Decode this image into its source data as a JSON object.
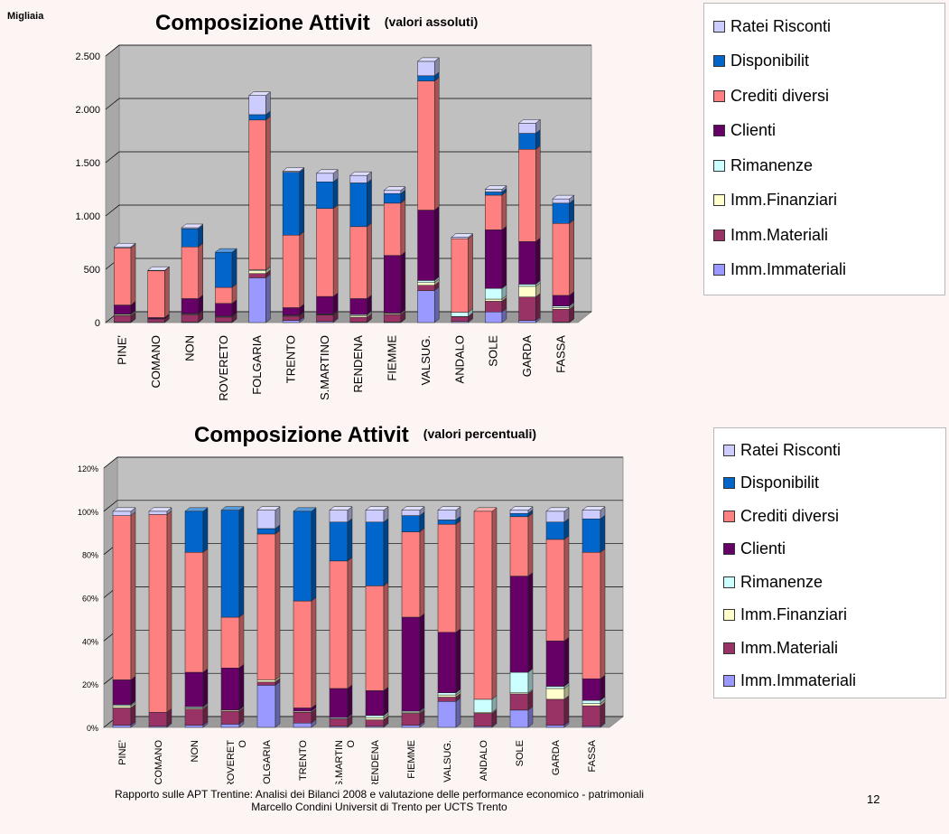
{
  "unit_label": "Migliaia",
  "footer": {
    "line1": "Rapporto sulle APT Trentine: Analisi dei Bilanci 2008 e valutazione delle performance economico - patrimoniali",
    "line2": "Marcello Condini Universit  di Trento  per UCTS Trento"
  },
  "page_number": "12",
  "colors": {
    "Imm.Immateriali": "#9999ff",
    "Imm.Materiali": "#993366",
    "Imm.Finanziari": "#ffffcc",
    "Rimanenze": "#ccffff",
    "Clienti": "#660066",
    "Crediti diversi": "#ff8080",
    "Disponibilit": "#0066cc",
    "Ratei Risconti": "#ccccff"
  },
  "legend_items": [
    "Ratei Risconti",
    "Disponibilit",
    "Crediti diversi",
    "Clienti",
    "Rimanenze",
    "Imm.Finanziari",
    "Imm.Materiali",
    "Imm.Immateriali"
  ],
  "chart_data": [
    {
      "type": "bar",
      "stacked": true,
      "title": "Composizione Attivit",
      "subtitle": "(valori assoluti)",
      "ylim": [
        0,
        2500
      ],
      "yticks": [
        0,
        500,
        1000,
        1500,
        2000,
        2500
      ],
      "ytick_labels": [
        "0",
        "500",
        "1.000",
        "1.500",
        "2.000",
        "2.500"
      ],
      "legend_position": "right",
      "grid": true,
      "categories": [
        "PINE'",
        "COMANO",
        "NON",
        "ROVERETO",
        "FOLGARIA",
        "TRENTO",
        "S.MARTINO",
        "RENDENA",
        "FIEMME",
        "VALSUG.",
        "ANDALO",
        "SOLE",
        "GARDA",
        "FASSA"
      ],
      "series": [
        {
          "name": "Imm.Immateriali",
          "values": [
            5,
            3,
            5,
            5,
            420,
            20,
            10,
            5,
            5,
            300,
            10,
            100,
            20,
            5
          ]
        },
        {
          "name": "Imm.Materiali",
          "values": [
            60,
            30,
            70,
            45,
            40,
            40,
            60,
            45,
            70,
            50,
            45,
            100,
            220,
            120
          ]
        },
        {
          "name": "Imm.Finanziari",
          "values": [
            10,
            2,
            5,
            5,
            25,
            5,
            5,
            15,
            10,
            25,
            2,
            20,
            100,
            15
          ]
        },
        {
          "name": "Rimanenze",
          "values": [
            5,
            2,
            5,
            5,
            10,
            5,
            5,
            10,
            5,
            20,
            40,
            100,
            20,
            15
          ]
        },
        {
          "name": "Clienti",
          "values": [
            85,
            10,
            140,
            120,
            0,
            70,
            165,
            150,
            540,
            660,
            0,
            550,
            400,
            100
          ]
        },
        {
          "name": "Crediti diversi",
          "values": [
            535,
            438,
            485,
            150,
            1405,
            680,
            825,
            675,
            490,
            1210,
            690,
            325,
            865,
            675
          ]
        },
        {
          "name": "Disponibilit",
          "values": [
            0,
            0,
            170,
            330,
            50,
            590,
            250,
            410,
            90,
            50,
            0,
            30,
            150,
            190
          ]
        },
        {
          "name": "Ratei Risconti",
          "values": [
            10,
            5,
            10,
            0,
            180,
            10,
            80,
            70,
            30,
            135,
            13,
            25,
            95,
            40
          ]
        }
      ]
    },
    {
      "type": "bar",
      "stacked": true,
      "title": "Composizione Attivit",
      "subtitle": "(valori percentuali)",
      "ylim": [
        0,
        120
      ],
      "yticks": [
        0,
        20,
        40,
        60,
        80,
        100,
        120
      ],
      "ytick_labels": [
        "0%",
        "20%",
        "40%",
        "60%",
        "80%",
        "100%",
        "120%"
      ],
      "legend_position": "right",
      "grid": true,
      "categories": [
        "PINE'",
        "COMANO",
        "NON",
        "ROVERET\nO",
        "FOLGARIA",
        "TRENTO",
        "S.MARTIN\nO",
        "RENDENA",
        "FIEMME",
        "VALSUG.",
        "ANDALO",
        "SOLE",
        "GARDA",
        "FASSA"
      ],
      "series": [
        {
          "name": "Imm.Immateriali",
          "values": [
            1,
            0.5,
            1,
            1.5,
            19.5,
            2,
            0.5,
            0.5,
            1,
            12,
            0.5,
            8,
            1,
            0.5
          ]
        },
        {
          "name": "Imm.Materiali",
          "values": [
            8,
            6.5,
            7.5,
            6,
            1.5,
            5,
            3.5,
            3,
            5.5,
            2,
            6,
            7.5,
            12,
            9.5
          ]
        },
        {
          "name": "Imm.Finanziari",
          "values": [
            1,
            0,
            0.5,
            0.5,
            1,
            0.5,
            0,
            1,
            0.5,
            1,
            0.5,
            0.5,
            5,
            1
          ]
        },
        {
          "name": "Rimanenze",
          "values": [
            0.5,
            0,
            0.5,
            0,
            0,
            0,
            0.5,
            1,
            0.5,
            1,
            6,
            9.5,
            1,
            1.5
          ]
        },
        {
          "name": "Clienti",
          "values": [
            11.5,
            0,
            16,
            19.5,
            0,
            1.5,
            13.5,
            11.5,
            43.5,
            28,
            0,
            44.5,
            21,
            10
          ]
        },
        {
          "name": "Crediti diversi",
          "values": [
            76,
            91.5,
            55.5,
            23.5,
            67.5,
            49.5,
            59,
            48.5,
            39.5,
            50,
            87,
            27.5,
            47,
            58.5
          ]
        },
        {
          "name": "Disponibilit",
          "values": [
            0,
            0,
            19,
            49.5,
            2.5,
            41.5,
            18,
            29.5,
            7.5,
            2,
            0,
            1.5,
            8,
            15.5
          ]
        },
        {
          "name": "Ratei Risconti",
          "values": [
            2,
            1.5,
            0,
            0,
            8.5,
            0,
            5.5,
            5.5,
            2.5,
            4.5,
            0,
            1.5,
            5,
            4
          ]
        }
      ]
    }
  ]
}
